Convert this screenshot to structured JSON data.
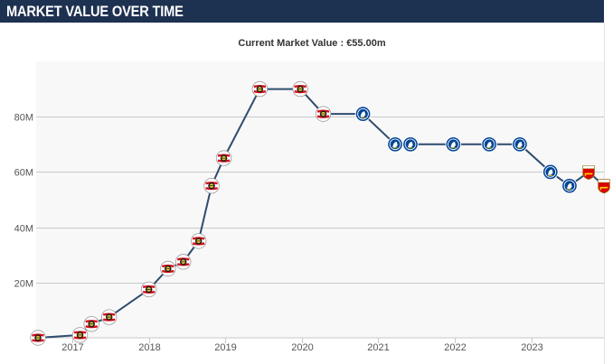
{
  "header": {
    "title": "MARKET VALUE OVER TIME"
  },
  "colors": {
    "header_bg": "#1d3150",
    "line": "#2e4b6e",
    "plot_bg": "#f8f8f8",
    "gridline": "#c8c8c8"
  },
  "chart_data": {
    "type": "line",
    "title": "Current Market Value : €55.00m",
    "xlabel": "",
    "ylabel": "",
    "xlim": [
      2016.55,
      2023.95
    ],
    "ylim": [
      0,
      100
    ],
    "x_ticks": [
      2017,
      2018,
      2019,
      2020,
      2021,
      2022,
      2023
    ],
    "x_tick_labels": [
      "2017",
      "2018",
      "2019",
      "2020",
      "2021",
      "2022",
      "2023"
    ],
    "y_ticks": [
      20,
      40,
      60,
      80
    ],
    "y_tick_labels": [
      "20M",
      "40M",
      "60M",
      "80M"
    ],
    "grid": true,
    "series": [
      {
        "name": "Market value",
        "points": [
          {
            "x": 2016.55,
            "y": 0,
            "club": "leverkusen"
          },
          {
            "x": 2017.1,
            "y": 1,
            "club": "leverkusen"
          },
          {
            "x": 2017.25,
            "y": 5,
            "club": "leverkusen"
          },
          {
            "x": 2017.48,
            "y": 7.5,
            "club": "leverkusen"
          },
          {
            "x": 2018.0,
            "y": 17.5,
            "club": "leverkusen"
          },
          {
            "x": 2018.25,
            "y": 25,
            "club": "leverkusen"
          },
          {
            "x": 2018.45,
            "y": 27.5,
            "club": "leverkusen"
          },
          {
            "x": 2018.65,
            "y": 35,
            "club": "leverkusen"
          },
          {
            "x": 2018.82,
            "y": 55,
            "club": "leverkusen"
          },
          {
            "x": 2018.98,
            "y": 65,
            "club": "leverkusen"
          },
          {
            "x": 2019.45,
            "y": 90,
            "club": "leverkusen"
          },
          {
            "x": 2019.98,
            "y": 90,
            "club": "leverkusen"
          },
          {
            "x": 2020.28,
            "y": 81,
            "club": "leverkusen"
          },
          {
            "x": 2020.8,
            "y": 81,
            "club": "chelsea"
          },
          {
            "x": 2021.22,
            "y": 70,
            "club": "chelsea"
          },
          {
            "x": 2021.42,
            "y": 70,
            "club": "chelsea"
          },
          {
            "x": 2021.98,
            "y": 70,
            "club": "chelsea"
          },
          {
            "x": 2022.45,
            "y": 70,
            "club": "chelsea"
          },
          {
            "x": 2022.85,
            "y": 70,
            "club": "chelsea"
          },
          {
            "x": 2023.25,
            "y": 60,
            "club": "chelsea"
          },
          {
            "x": 2023.5,
            "y": 55,
            "club": "chelsea"
          },
          {
            "x": 2023.75,
            "y": 60,
            "club": "arsenal"
          },
          {
            "x": 2023.95,
            "y": 55,
            "club": "arsenal"
          }
        ]
      }
    ]
  }
}
